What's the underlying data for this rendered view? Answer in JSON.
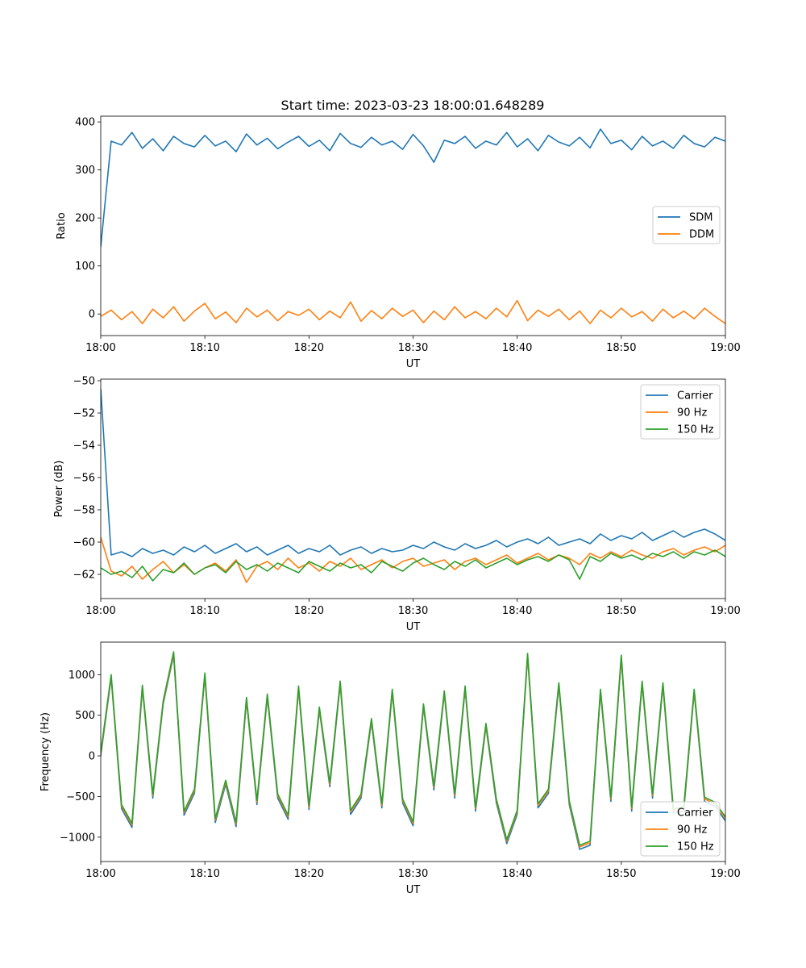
{
  "figure_title": "Start time: 2023-03-23 18:00:01.648289",
  "chart_data": [
    {
      "type": "line",
      "title": "Start time: 2023-03-23 18:00:01.648289",
      "xlabel": "UT",
      "ylabel": "Ratio",
      "xlim": [
        "18:00",
        "19:00"
      ],
      "xticks": [
        "18:00",
        "18:10",
        "18:20",
        "18:30",
        "18:40",
        "18:50",
        "19:00"
      ],
      "ylim": [
        -45,
        412
      ],
      "yticks": [
        0,
        100,
        200,
        300,
        400
      ],
      "ytick_labels": [
        "0",
        "100",
        "200",
        "300",
        "400"
      ],
      "grid": false,
      "legend_position": "center-right",
      "x": [
        "18:00",
        "18:01",
        "18:02",
        "18:03",
        "18:04",
        "18:05",
        "18:06",
        "18:07",
        "18:08",
        "18:09",
        "18:10",
        "18:11",
        "18:12",
        "18:13",
        "18:14",
        "18:15",
        "18:16",
        "18:17",
        "18:18",
        "18:19",
        "18:20",
        "18:21",
        "18:22",
        "18:23",
        "18:24",
        "18:25",
        "18:26",
        "18:27",
        "18:28",
        "18:29",
        "18:30",
        "18:31",
        "18:32",
        "18:33",
        "18:34",
        "18:35",
        "18:36",
        "18:37",
        "18:38",
        "18:39",
        "18:40",
        "18:41",
        "18:42",
        "18:43",
        "18:44",
        "18:45",
        "18:46",
        "18:47",
        "18:48",
        "18:49",
        "18:50",
        "18:51",
        "18:52",
        "18:53",
        "18:54",
        "18:55",
        "18:56",
        "18:57",
        "18:58",
        "18:59",
        "19:00"
      ],
      "series": [
        {
          "name": "SDM",
          "color": "#1f77b4",
          "values": [
            140,
            360,
            352,
            378,
            345,
            365,
            340,
            370,
            355,
            348,
            372,
            350,
            360,
            338,
            375,
            352,
            366,
            344,
            358,
            370,
            349,
            362,
            340,
            376,
            355,
            347,
            368,
            352,
            360,
            343,
            374,
            350,
            316,
            362,
            355,
            370,
            345,
            360,
            352,
            378,
            348,
            365,
            340,
            372,
            358,
            350,
            368,
            346,
            385,
            355,
            362,
            342,
            370,
            350,
            360,
            345,
            372,
            355,
            348,
            368,
            360
          ]
        },
        {
          "name": "DDM",
          "color": "#ff7f0e",
          "values": [
            -5,
            8,
            -12,
            5,
            -20,
            10,
            -8,
            15,
            -15,
            6,
            22,
            -10,
            4,
            -18,
            12,
            -6,
            8,
            -14,
            5,
            -3,
            10,
            -12,
            6,
            -8,
            25,
            -15,
            7,
            -10,
            12,
            -5,
            8,
            -18,
            6,
            -12,
            15,
            -8,
            5,
            -10,
            12,
            -6,
            28,
            -14,
            8,
            -5,
            10,
            -12,
            6,
            -20,
            8,
            -8,
            12,
            -6,
            5,
            -15,
            10,
            -8,
            6,
            -10,
            12,
            -5,
            -20
          ]
        }
      ]
    },
    {
      "type": "line",
      "title": "",
      "xlabel": "UT",
      "ylabel": "Power (dB)",
      "xlim": [
        "18:00",
        "19:00"
      ],
      "xticks": [
        "18:00",
        "18:10",
        "18:20",
        "18:30",
        "18:40",
        "18:50",
        "19:00"
      ],
      "ylim": [
        -63.5,
        -49.9
      ],
      "yticks": [
        -62,
        -60,
        -58,
        -56,
        -54,
        -52,
        -50
      ],
      "ytick_labels": [
        "−62",
        "−60",
        "−58",
        "−56",
        "−54",
        "−52",
        "−50"
      ],
      "grid": false,
      "legend_position": "top-right",
      "x": [
        "18:00",
        "18:01",
        "18:02",
        "18:03",
        "18:04",
        "18:05",
        "18:06",
        "18:07",
        "18:08",
        "18:09",
        "18:10",
        "18:11",
        "18:12",
        "18:13",
        "18:14",
        "18:15",
        "18:16",
        "18:17",
        "18:18",
        "18:19",
        "18:20",
        "18:21",
        "18:22",
        "18:23",
        "18:24",
        "18:25",
        "18:26",
        "18:27",
        "18:28",
        "18:29",
        "18:30",
        "18:31",
        "18:32",
        "18:33",
        "18:34",
        "18:35",
        "18:36",
        "18:37",
        "18:38",
        "18:39",
        "18:40",
        "18:41",
        "18:42",
        "18:43",
        "18:44",
        "18:45",
        "18:46",
        "18:47",
        "18:48",
        "18:49",
        "18:50",
        "18:51",
        "18:52",
        "18:53",
        "18:54",
        "18:55",
        "18:56",
        "18:57",
        "18:58",
        "18:59",
        "19:00"
      ],
      "series": [
        {
          "name": "Carrier",
          "color": "#1f77b4",
          "values": [
            -50.5,
            -60.8,
            -60.6,
            -60.9,
            -60.4,
            -60.7,
            -60.5,
            -60.8,
            -60.3,
            -60.6,
            -60.2,
            -60.7,
            -60.4,
            -60.1,
            -60.6,
            -60.3,
            -60.8,
            -60.5,
            -60.2,
            -60.7,
            -60.4,
            -60.6,
            -60.2,
            -60.8,
            -60.5,
            -60.3,
            -60.7,
            -60.4,
            -60.6,
            -60.5,
            -60.2,
            -60.4,
            -60.0,
            -60.3,
            -60.5,
            -60.1,
            -60.4,
            -60.2,
            -59.9,
            -60.3,
            -60.0,
            -59.8,
            -60.1,
            -59.7,
            -60.2,
            -60.0,
            -59.8,
            -60.1,
            -59.5,
            -59.9,
            -59.6,
            -59.8,
            -59.4,
            -59.9,
            -59.6,
            -59.3,
            -59.7,
            -59.4,
            -59.2,
            -59.5,
            -59.9
          ]
        },
        {
          "name": "90 Hz",
          "color": "#ff7f0e",
          "values": [
            -59.7,
            -61.8,
            -62.1,
            -61.5,
            -62.3,
            -61.7,
            -61.2,
            -61.9,
            -61.4,
            -62.0,
            -61.6,
            -61.3,
            -61.8,
            -61.1,
            -62.5,
            -61.5,
            -61.2,
            -61.7,
            -61.0,
            -61.6,
            -61.3,
            -61.8,
            -61.2,
            -61.5,
            -61.0,
            -61.7,
            -61.4,
            -61.1,
            -61.6,
            -61.2,
            -61.0,
            -61.5,
            -61.3,
            -61.1,
            -61.7,
            -61.2,
            -61.0,
            -61.4,
            -61.1,
            -60.8,
            -61.3,
            -61.0,
            -60.7,
            -61.1,
            -60.8,
            -61.0,
            -61.4,
            -60.7,
            -61.0,
            -60.6,
            -60.9,
            -60.5,
            -60.8,
            -61.0,
            -60.6,
            -60.4,
            -60.8,
            -60.5,
            -60.3,
            -60.6,
            -60.2
          ]
        },
        {
          "name": "150 Hz",
          "color": "#2ca02c",
          "values": [
            -61.6,
            -62.0,
            -61.8,
            -62.2,
            -61.5,
            -62.4,
            -61.7,
            -61.9,
            -61.3,
            -62.0,
            -61.6,
            -61.4,
            -61.9,
            -61.2,
            -61.7,
            -61.4,
            -61.8,
            -61.3,
            -61.6,
            -61.9,
            -61.2,
            -61.5,
            -61.8,
            -61.3,
            -61.6,
            -61.4,
            -61.9,
            -61.2,
            -61.5,
            -61.8,
            -61.3,
            -61.0,
            -61.4,
            -61.7,
            -61.2,
            -61.5,
            -61.1,
            -61.6,
            -61.3,
            -61.0,
            -61.4,
            -61.1,
            -60.9,
            -61.2,
            -60.8,
            -61.1,
            -62.3,
            -60.9,
            -61.2,
            -60.7,
            -61.0,
            -60.8,
            -61.1,
            -60.7,
            -60.9,
            -60.6,
            -61.0,
            -60.6,
            -60.8,
            -60.5,
            -60.9
          ]
        }
      ]
    },
    {
      "type": "line",
      "title": "",
      "xlabel": "UT",
      "ylabel": "Frequency (Hz)",
      "xlim": [
        "18:00",
        "19:00"
      ],
      "xticks": [
        "18:00",
        "18:10",
        "18:20",
        "18:30",
        "18:40",
        "18:50",
        "19:00"
      ],
      "ylim": [
        -1300,
        1400
      ],
      "yticks": [
        -1000,
        -500,
        0,
        500,
        1000
      ],
      "ytick_labels": [
        "−1000",
        "−500",
        "0",
        "500",
        "1000"
      ],
      "grid": false,
      "legend_position": "bottom-right",
      "x": [
        "18:00",
        "18:01",
        "18:02",
        "18:03",
        "18:04",
        "18:05",
        "18:06",
        "18:07",
        "18:08",
        "18:09",
        "18:10",
        "18:11",
        "18:12",
        "18:13",
        "18:14",
        "18:15",
        "18:16",
        "18:17",
        "18:18",
        "18:19",
        "18:20",
        "18:21",
        "18:22",
        "18:23",
        "18:24",
        "18:25",
        "18:26",
        "18:27",
        "18:28",
        "18:29",
        "18:30",
        "18:31",
        "18:32",
        "18:33",
        "18:34",
        "18:35",
        "18:36",
        "18:37",
        "18:38",
        "18:39",
        "18:40",
        "18:41",
        "18:42",
        "18:43",
        "18:44",
        "18:45",
        "18:46",
        "18:47",
        "18:48",
        "18:49",
        "18:50",
        "18:51",
        "18:52",
        "18:53",
        "18:54",
        "18:55",
        "18:56",
        "18:57",
        "18:58",
        "18:59",
        "19:00"
      ],
      "series": [
        {
          "name": "Carrier",
          "color": "#1f77b4",
          "values": [
            0,
            960,
            -650,
            -880,
            830,
            -520,
            640,
            1240,
            -730,
            -460,
            980,
            -820,
            -350,
            -870,
            680,
            -600,
            720,
            -520,
            -780,
            820,
            -660,
            560,
            -380,
            880,
            -720,
            -520,
            420,
            -640,
            780,
            -580,
            -860,
            600,
            -420,
            760,
            -520,
            820,
            -680,
            360,
            -580,
            -1080,
            -720,
            1220,
            -640,
            -460,
            860,
            -600,
            -1150,
            -1100,
            780,
            -560,
            1200,
            -680,
            880,
            -520,
            860,
            -700,
            -680,
            780,
            -560,
            -620,
            -800
          ]
        },
        {
          "name": "90 Hz",
          "color": "#ff7f0e",
          "values": [
            20,
            980,
            -620,
            -850,
            850,
            -490,
            660,
            1260,
            -700,
            -430,
            1000,
            -790,
            -320,
            -840,
            700,
            -570,
            740,
            -490,
            -750,
            840,
            -630,
            580,
            -350,
            900,
            -690,
            -490,
            440,
            -610,
            800,
            -550,
            -830,
            620,
            -390,
            780,
            -490,
            840,
            -650,
            380,
            -550,
            -1050,
            -690,
            1240,
            -610,
            -430,
            880,
            -570,
            -1120,
            -1070,
            800,
            -530,
            1220,
            -650,
            900,
            -490,
            880,
            -670,
            -650,
            800,
            -530,
            -590,
            -770
          ]
        },
        {
          "name": "150 Hz",
          "color": "#2ca02c",
          "values": [
            40,
            1000,
            -600,
            -830,
            870,
            -470,
            680,
            1280,
            -680,
            -410,
            1020,
            -770,
            -300,
            -820,
            720,
            -550,
            760,
            -470,
            -730,
            860,
            -610,
            600,
            -330,
            920,
            -670,
            -470,
            460,
            -590,
            820,
            -530,
            -810,
            640,
            -370,
            800,
            -470,
            860,
            -630,
            400,
            -530,
            -1030,
            -670,
            1260,
            -590,
            -410,
            900,
            -550,
            -1100,
            -1050,
            820,
            -510,
            1240,
            -630,
            920,
            -470,
            900,
            -650,
            -630,
            820,
            -510,
            -570,
            -750
          ]
        }
      ]
    }
  ]
}
